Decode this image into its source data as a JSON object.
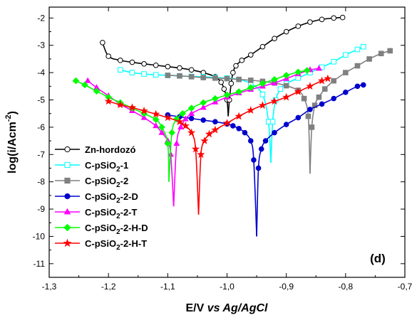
{
  "chart_data": {
    "type": "line",
    "title": "",
    "panel_label": "(d)",
    "xlabel_parts": [
      "E/V ",
      "vs Ag/AgCl"
    ],
    "ylabel_parts": [
      "log(i/Acm",
      "-2",
      ")"
    ],
    "xlim": [
      -1.3,
      -0.7
    ],
    "ylim": [
      -11.5,
      -1.6
    ],
    "xticks": [
      -1.3,
      -1.2,
      -1.1,
      -1.0,
      -0.9,
      -0.8,
      -0.7
    ],
    "xtick_labels": [
      "-1,3",
      "-1,2",
      "-1,1",
      "-1,0",
      "-0,9",
      "-0,8",
      "-0,7"
    ],
    "yticks": [
      -2,
      -3,
      -4,
      -5,
      -6,
      -7,
      -8,
      -9,
      -10,
      -11
    ],
    "ytick_labels": [
      "-2",
      "-3",
      "-4",
      "-5",
      "-6",
      "-7",
      "-8",
      "-9",
      "-10",
      "-11"
    ],
    "legend_position": "bottom-left",
    "series": [
      {
        "name": "Zn-hordozó",
        "name_parts": [
          "Zn-hordozó"
        ],
        "color": "#000000",
        "marker": "circle-open",
        "cathodic": [
          [
            -1.21,
            -2.9
          ],
          [
            -1.2,
            -3.4
          ],
          [
            -1.18,
            -3.55
          ],
          [
            -1.16,
            -3.62
          ],
          [
            -1.14,
            -3.68
          ],
          [
            -1.12,
            -3.73
          ],
          [
            -1.1,
            -3.78
          ],
          [
            -1.08,
            -3.83
          ],
          [
            -1.06,
            -3.9
          ],
          [
            -1.04,
            -4.0
          ],
          [
            -1.02,
            -4.15
          ],
          [
            -1.01,
            -4.35
          ],
          [
            -1.005,
            -4.6
          ],
          [
            -1.0,
            -5.0
          ],
          [
            -0.998,
            -5.6
          ]
        ],
        "anodic": [
          [
            -0.998,
            -5.6
          ],
          [
            -0.996,
            -5.0
          ],
          [
            -0.993,
            -4.4
          ],
          [
            -0.99,
            -4.0
          ],
          [
            -0.985,
            -3.75
          ],
          [
            -0.975,
            -3.55
          ],
          [
            -0.96,
            -3.35
          ],
          [
            -0.94,
            -3.05
          ],
          [
            -0.92,
            -2.75
          ],
          [
            -0.9,
            -2.5
          ],
          [
            -0.88,
            -2.3
          ],
          [
            -0.86,
            -2.15
          ],
          [
            -0.84,
            -2.05
          ],
          [
            -0.82,
            -2.0
          ],
          [
            -0.805,
            -1.98
          ]
        ]
      },
      {
        "name": "C-pSiO2-1",
        "name_parts": [
          "C-pSiO",
          "2",
          "-1"
        ],
        "color": "#00ffff",
        "marker": "square-open",
        "cathodic": [
          [
            -1.18,
            -3.9
          ],
          [
            -1.16,
            -4.0
          ],
          [
            -1.14,
            -4.05
          ],
          [
            -1.12,
            -4.08
          ],
          [
            -1.1,
            -4.1
          ],
          [
            -1.08,
            -4.12
          ],
          [
            -1.06,
            -4.14
          ],
          [
            -1.04,
            -4.15
          ],
          [
            -1.02,
            -4.18
          ],
          [
            -1.0,
            -4.2
          ],
          [
            -0.98,
            -4.25
          ],
          [
            -0.96,
            -4.4
          ],
          [
            -0.94,
            -4.8
          ],
          [
            -0.93,
            -5.8
          ],
          [
            -0.926,
            -7.3
          ]
        ],
        "anodic": [
          [
            -0.926,
            -7.3
          ],
          [
            -0.923,
            -5.8
          ],
          [
            -0.918,
            -5.0
          ],
          [
            -0.91,
            -4.6
          ],
          [
            -0.9,
            -4.4
          ],
          [
            -0.88,
            -4.2
          ],
          [
            -0.86,
            -4.0
          ],
          [
            -0.84,
            -3.8
          ],
          [
            -0.82,
            -3.6
          ],
          [
            -0.8,
            -3.35
          ],
          [
            -0.78,
            -3.15
          ],
          [
            -0.77,
            -3.05
          ]
        ]
      },
      {
        "name": "C-pSiO2-2",
        "name_parts": [
          "C-pSiO",
          "2",
          "-2"
        ],
        "color": "#808080",
        "marker": "square-filled",
        "cathodic": [
          [
            -1.1,
            -4.1
          ],
          [
            -1.08,
            -4.12
          ],
          [
            -1.06,
            -4.15
          ],
          [
            -1.04,
            -4.18
          ],
          [
            -1.02,
            -4.2
          ],
          [
            -1.0,
            -4.22
          ],
          [
            -0.98,
            -4.25
          ],
          [
            -0.96,
            -4.28
          ],
          [
            -0.94,
            -4.32
          ],
          [
            -0.92,
            -4.38
          ],
          [
            -0.9,
            -4.48
          ],
          [
            -0.88,
            -4.65
          ],
          [
            -0.87,
            -4.95
          ],
          [
            -0.863,
            -5.6
          ],
          [
            -0.86,
            -7.7
          ]
        ],
        "anodic": [
          [
            -0.86,
            -7.7
          ],
          [
            -0.857,
            -6.0
          ],
          [
            -0.852,
            -5.2
          ],
          [
            -0.845,
            -4.9
          ],
          [
            -0.835,
            -4.6
          ],
          [
            -0.82,
            -4.3
          ],
          [
            -0.8,
            -4.0
          ],
          [
            -0.78,
            -3.75
          ],
          [
            -0.76,
            -3.5
          ],
          [
            -0.74,
            -3.3
          ],
          [
            -0.725,
            -3.2
          ]
        ]
      },
      {
        "name": "C-pSiO2-2-D",
        "name_parts": [
          "C-pSiO",
          "2",
          "-2-D"
        ],
        "color": "#0000cc",
        "marker": "circle-filled",
        "cathodic": [
          [
            -1.1,
            -5.55
          ],
          [
            -1.08,
            -5.62
          ],
          [
            -1.06,
            -5.68
          ],
          [
            -1.04,
            -5.74
          ],
          [
            -1.02,
            -5.8
          ],
          [
            -1.0,
            -5.88
          ],
          [
            -0.99,
            -5.95
          ],
          [
            -0.98,
            -6.05
          ],
          [
            -0.97,
            -6.2
          ],
          [
            -0.96,
            -6.5
          ],
          [
            -0.955,
            -7.2
          ],
          [
            -0.95,
            -10.0
          ]
        ],
        "anodic": [
          [
            -0.95,
            -10.0
          ],
          [
            -0.947,
            -7.5
          ],
          [
            -0.942,
            -6.8
          ],
          [
            -0.935,
            -6.5
          ],
          [
            -0.92,
            -6.2
          ],
          [
            -0.9,
            -5.9
          ],
          [
            -0.88,
            -5.65
          ],
          [
            -0.86,
            -5.35
          ],
          [
            -0.84,
            -5.15
          ],
          [
            -0.82,
            -4.95
          ],
          [
            -0.8,
            -4.72
          ],
          [
            -0.78,
            -4.5
          ],
          [
            -0.77,
            -4.45
          ]
        ]
      },
      {
        "name": "C-pSiO2-2-T",
        "name_parts": [
          "C-pSiO",
          "2",
          "-2-T"
        ],
        "color": "#ff00ff",
        "marker": "triangle-filled",
        "cathodic": [
          [
            -1.235,
            -4.3
          ],
          [
            -1.22,
            -4.55
          ],
          [
            -1.2,
            -4.85
          ],
          [
            -1.18,
            -5.15
          ],
          [
            -1.16,
            -5.4
          ],
          [
            -1.14,
            -5.65
          ],
          [
            -1.12,
            -5.95
          ],
          [
            -1.11,
            -6.2
          ],
          [
            -1.1,
            -6.5
          ],
          [
            -1.095,
            -7.0
          ],
          [
            -1.09,
            -8.9
          ]
        ],
        "anodic": [
          [
            -1.09,
            -8.9
          ],
          [
            -1.085,
            -6.6
          ],
          [
            -1.078,
            -6.0
          ],
          [
            -1.07,
            -5.7
          ],
          [
            -1.06,
            -5.5
          ],
          [
            -1.04,
            -5.28
          ],
          [
            -1.02,
            -5.08
          ],
          [
            -1.0,
            -4.9
          ],
          [
            -0.98,
            -4.75
          ],
          [
            -0.96,
            -4.62
          ],
          [
            -0.94,
            -4.5
          ],
          [
            -0.92,
            -4.38
          ],
          [
            -0.9,
            -4.22
          ],
          [
            -0.88,
            -4.05
          ],
          [
            -0.86,
            -3.9
          ],
          [
            -0.845,
            -3.85
          ]
        ]
      },
      {
        "name": "C-pSiO2-2-H-D",
        "name_parts": [
          "C-pSiO",
          "2",
          "-2-H-D"
        ],
        "color": "#00ff00",
        "marker": "diamond-filled",
        "cathodic": [
          [
            -1.255,
            -4.3
          ],
          [
            -1.24,
            -4.45
          ],
          [
            -1.22,
            -4.68
          ],
          [
            -1.2,
            -4.9
          ],
          [
            -1.18,
            -5.1
          ],
          [
            -1.16,
            -5.3
          ],
          [
            -1.14,
            -5.5
          ],
          [
            -1.12,
            -5.72
          ],
          [
            -1.11,
            -6.0
          ],
          [
            -1.1,
            -6.6
          ],
          [
            -1.098,
            -8.0
          ]
        ],
        "anodic": [
          [
            -1.098,
            -8.0
          ],
          [
            -1.093,
            -6.2
          ],
          [
            -1.085,
            -5.7
          ],
          [
            -1.075,
            -5.5
          ],
          [
            -1.06,
            -5.3
          ],
          [
            -1.04,
            -5.1
          ],
          [
            -1.02,
            -4.95
          ],
          [
            -1.0,
            -4.82
          ],
          [
            -0.98,
            -4.7
          ],
          [
            -0.96,
            -4.55
          ],
          [
            -0.94,
            -4.4
          ],
          [
            -0.92,
            -4.25
          ],
          [
            -0.9,
            -4.1
          ],
          [
            -0.88,
            -3.98
          ],
          [
            -0.865,
            -3.92
          ]
        ]
      },
      {
        "name": "C-pSiO2-2-H-T",
        "name_parts": [
          "C-pSiO",
          "2",
          "-2-H-T"
        ],
        "color": "#ff0000",
        "marker": "star-filled",
        "cathodic": [
          [
            -1.2,
            -5.05
          ],
          [
            -1.18,
            -5.18
          ],
          [
            -1.16,
            -5.28
          ],
          [
            -1.14,
            -5.4
          ],
          [
            -1.12,
            -5.52
          ],
          [
            -1.1,
            -5.65
          ],
          [
            -1.08,
            -5.8
          ],
          [
            -1.07,
            -5.95
          ],
          [
            -1.06,
            -6.2
          ],
          [
            -1.053,
            -6.8
          ],
          [
            -1.048,
            -9.2
          ]
        ],
        "anodic": [
          [
            -1.048,
            -9.2
          ],
          [
            -1.044,
            -7.0
          ],
          [
            -1.038,
            -6.5
          ],
          [
            -1.03,
            -6.25
          ],
          [
            -1.02,
            -6.1
          ],
          [
            -1.0,
            -5.85
          ],
          [
            -0.98,
            -5.6
          ],
          [
            -0.96,
            -5.38
          ],
          [
            -0.94,
            -5.2
          ],
          [
            -0.92,
            -5.05
          ],
          [
            -0.9,
            -4.9
          ],
          [
            -0.88,
            -4.7
          ],
          [
            -0.86,
            -4.5
          ],
          [
            -0.84,
            -4.3
          ],
          [
            -0.83,
            -4.22
          ]
        ]
      }
    ]
  }
}
